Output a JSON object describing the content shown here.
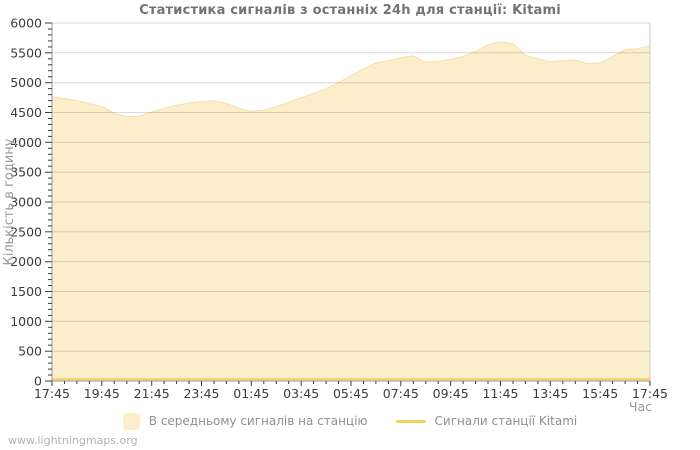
{
  "watermark": "www.lightningmaps.org",
  "chart_data": {
    "type": "area",
    "title": "Статистика сигналів з останніх 24h для станції: Kitami",
    "xlabel": "Час",
    "ylabel": "Кількість в годину",
    "ylim": [
      0,
      6000
    ],
    "ytick_step": 500,
    "y_minor_step": 100,
    "grid": "horizontal",
    "legend_position": "bottom",
    "x_tick_labels": [
      "17:45",
      "19:45",
      "21:45",
      "23:45",
      "01:45",
      "03:45",
      "05:45",
      "07:45",
      "09:45",
      "11:45",
      "13:45",
      "15:45",
      "17:45"
    ],
    "x_minor_per_major": 4,
    "x_resolution_minutes": 30,
    "series": [
      {
        "name": "В середньому сигналів на станцію",
        "type": "area",
        "fill": "#fcedcb",
        "stroke": "#f6e0ae",
        "values": [
          4760,
          4730,
          4700,
          4650,
          4600,
          4490,
          4430,
          4440,
          4510,
          4570,
          4620,
          4660,
          4680,
          4700,
          4650,
          4570,
          4520,
          4540,
          4600,
          4670,
          4750,
          4820,
          4900,
          5000,
          5120,
          5230,
          5330,
          5370,
          5420,
          5450,
          5340,
          5360,
          5390,
          5440,
          5520,
          5640,
          5680,
          5660,
          5460,
          5400,
          5350,
          5370,
          5380,
          5320,
          5330,
          5440,
          5550,
          5570,
          5620
        ]
      },
      {
        "name": "Сигнали станції Kitami",
        "type": "line",
        "color": "#f6d05c",
        "values": [
          30,
          30,
          30,
          30,
          30,
          30,
          30,
          30,
          30,
          30,
          30,
          30,
          30,
          30,
          30,
          30,
          30,
          30,
          30,
          30,
          30,
          30,
          30,
          30,
          30,
          30,
          30,
          30,
          30,
          30,
          30,
          30,
          30,
          30,
          30,
          30,
          30,
          30,
          30,
          30,
          30,
          30,
          30,
          30,
          30,
          30,
          30,
          30,
          30
        ]
      }
    ],
    "axis_color": "#9b9b9b",
    "tick_color": "#3c3c3c",
    "grid_color": "rgba(0,0,0,0.15)"
  }
}
